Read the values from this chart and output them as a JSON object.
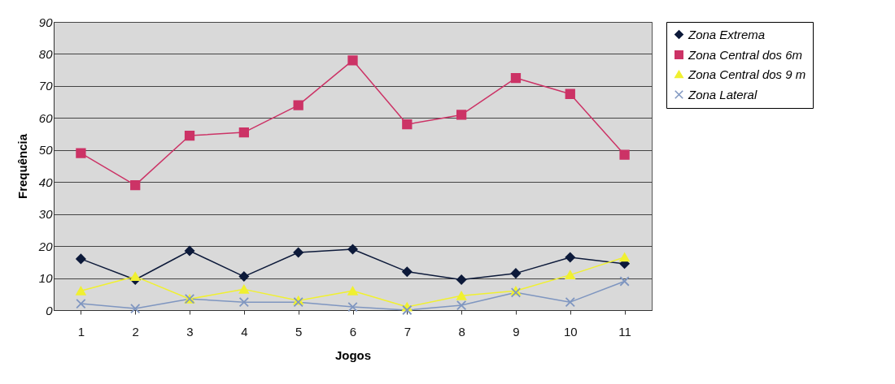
{
  "chart_data": {
    "type": "line",
    "xlabel": "Jogos",
    "ylabel": "Frequência",
    "categories": [
      "1",
      "2",
      "3",
      "4",
      "5",
      "6",
      "7",
      "8",
      "9",
      "10",
      "11"
    ],
    "series": [
      {
        "name": "Zona Extrema",
        "color": "#0d1a3a",
        "marker": "diamond",
        "values": [
          16,
          9.5,
          18.5,
          10.5,
          18,
          19,
          12,
          9.5,
          11.5,
          16.5,
          14.5
        ]
      },
      {
        "name": "Zona Central dos 6m",
        "color": "#cc3366",
        "marker": "square",
        "values": [
          49,
          39,
          54.5,
          55.5,
          64,
          78,
          58,
          61,
          72.5,
          67.5,
          48.5
        ]
      },
      {
        "name": "Zona Central dos 9 m",
        "color": "#f0f030",
        "marker": "triangle",
        "values": [
          6,
          10.5,
          3.5,
          6.5,
          3,
          6,
          1,
          4.5,
          6,
          11,
          16.5
        ]
      },
      {
        "name": "Zona Lateral",
        "color": "#7f96c0",
        "marker": "cross",
        "values": [
          2,
          0.5,
          3.5,
          2.5,
          2.5,
          1,
          0,
          1.5,
          5.5,
          2.5,
          9
        ]
      }
    ],
    "ylim": [
      0,
      90
    ],
    "yticks": [
      0,
      10,
      20,
      30,
      40,
      50,
      60,
      70,
      80,
      90
    ],
    "grid": "y",
    "legend": "right",
    "line_style": "solid"
  }
}
